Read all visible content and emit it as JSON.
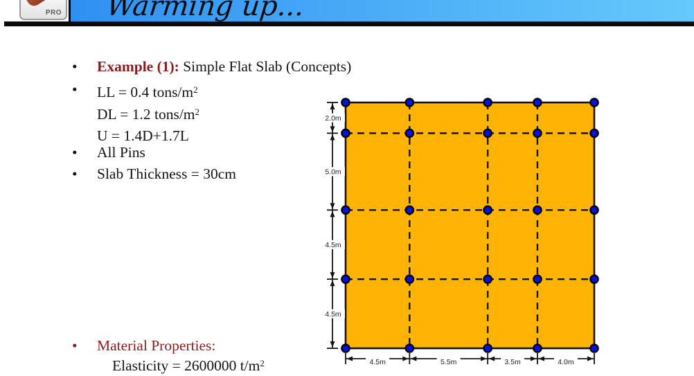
{
  "slide": {
    "header": {
      "title": "Warming up...",
      "logo_text": "PRO"
    },
    "bullets": {
      "example": {
        "label": "Example (1):",
        "text": " Simple Flat Slab (Concepts)"
      },
      "loads": [
        {
          "text": "LL = 0.4 tons/m",
          "sup": "2"
        },
        {
          "text": "DL = 1.2 tons/m",
          "sup": "2"
        },
        {
          "text": "U = 1.4D+1.7L",
          "sup": ""
        }
      ],
      "pins": "All Pins",
      "thickness": "Slab Thickness = 30cm",
      "material": "Material Properties:",
      "elasticity": {
        "text": "Elasticity = 2600000 t/m",
        "sup": "2"
      }
    }
  },
  "glyphs": {
    "bullet": "•"
  },
  "colors": {
    "banner_left": "#2f90f2",
    "banner_right": "#66c9fb",
    "accent_red": "#8b1b1b",
    "slab_fill": "#ffb405",
    "node_fill": "#0013e0",
    "line": "#141414",
    "dim_text": "#222222"
  },
  "diagram": {
    "col_spacings_m": [
      4.5,
      5.5,
      3.5,
      4.0
    ],
    "row_spacings_m": [
      2.0,
      5.0,
      4.5,
      4.5
    ],
    "col_labels": [
      "4.5m",
      "5.5m",
      "3.5m",
      "4.0m"
    ],
    "row_labels": [
      "2.0m",
      "5.0m",
      "4.5m",
      "4.5m"
    ],
    "supports": "pins-at-all-grid-intersections"
  }
}
